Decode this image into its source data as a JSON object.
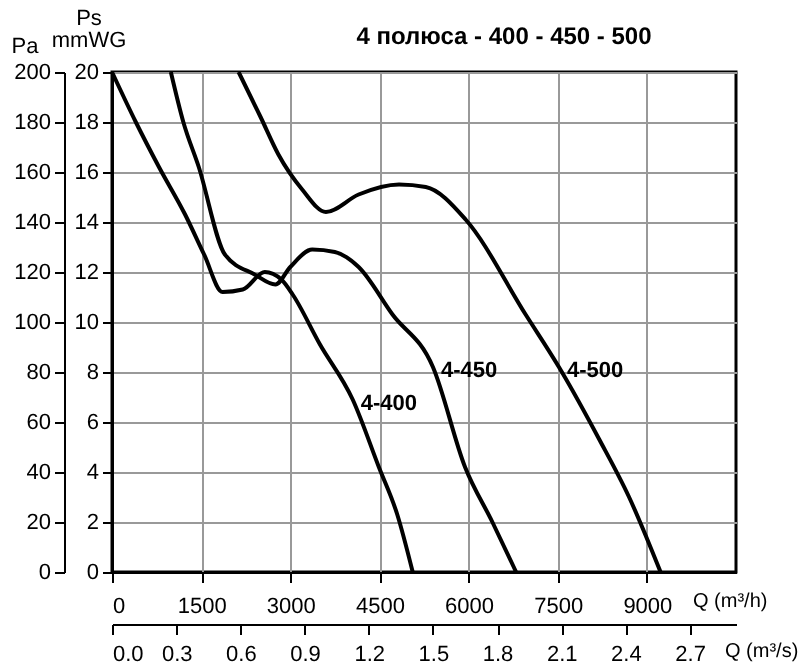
{
  "chart_data": {
    "type": "line",
    "title": "4 полюса - 400 - 450 - 500",
    "xlabel": "Q (m³/h)",
    "x2label": "Q (m³/s)",
    "ylabel": "Pa",
    "y2label": "Ps mmWG",
    "xlim": [
      0,
      10500
    ],
    "xticks": [
      0,
      1500,
      3000,
      4500,
      6000,
      7500,
      9000
    ],
    "x2lim": [
      0,
      2.917
    ],
    "x2ticks": [
      {
        "value": 0,
        "label": "0.0"
      },
      0.3,
      0.6,
      0.9,
      1.2,
      1.5,
      1.8,
      2.1,
      2.4,
      2.7
    ],
    "ylim": [
      0,
      200
    ],
    "yticks": [
      0,
      20,
      40,
      60,
      80,
      100,
      120,
      140,
      160,
      180,
      200
    ],
    "y2lim": [
      0,
      20
    ],
    "y2ticks": [
      0,
      2,
      4,
      6,
      8,
      10,
      12,
      14,
      16,
      18,
      20
    ],
    "grid": true,
    "legend": false,
    "series": [
      {
        "name": "4-400",
        "color": "#000000",
        "x": [
          0,
          400,
          790,
          1230,
          1550,
          1860,
          2200,
          2570,
          2850,
          3040,
          3500,
          4050,
          4490,
          4800,
          5060
        ],
        "values": [
          200,
          180,
          162,
          143,
          127,
          112,
          113,
          120,
          117,
          111,
          91,
          69,
          42,
          23,
          0
        ]
      },
      {
        "name": "4-450",
        "color": "#000000",
        "x": [
          990,
          1200,
          1460,
          1900,
          2400,
          2750,
          3000,
          3370,
          3750,
          4150,
          4720,
          5400,
          5940,
          6400,
          6800
        ],
        "values": [
          200,
          180,
          162,
          127,
          119,
          115,
          122,
          129,
          128,
          122,
          103,
          82,
          42,
          20,
          0
        ]
      },
      {
        "name": "4-500",
        "color": "#000000",
        "x": [
          2130,
          2500,
          2800,
          3200,
          3600,
          4150,
          4830,
          5280,
          5950,
          6960,
          7520,
          8200,
          8700,
          9230
        ],
        "values": [
          200,
          182,
          167,
          153,
          144,
          151,
          155,
          154,
          141,
          103,
          82,
          53,
          30,
          0
        ]
      }
    ]
  }
}
